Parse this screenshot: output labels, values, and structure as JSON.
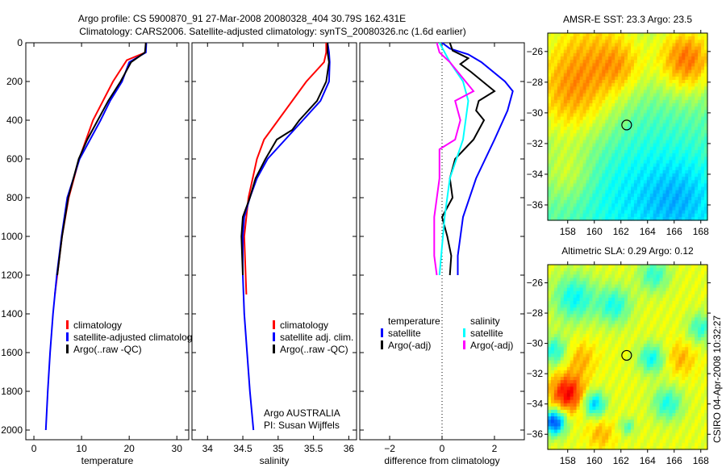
{
  "title": {
    "line1": "Argo profile: CS 5900870_91 27-Mar-2008 20080328_404 30.79S 162.431E",
    "line2": "Climatology: CARS2006. Satellite-adjusted climatology: synTS_20080326.nc (1.6d earlier)"
  },
  "credit": {
    "argo": "Argo AUSTRALIA",
    "pi": "PI: Susan Wijffels",
    "csiro": "CSIRO 04-Apr-2008 10:32:27"
  },
  "colors": {
    "red": "#ff0000",
    "blue": "#0000ff",
    "black": "#000000",
    "cyan": "#00ffff",
    "magenta": "#ff00ff"
  },
  "chart_data": [
    {
      "type": "line",
      "xlabel": "temperature",
      "ylabel": "",
      "xlim": [
        -1.7,
        32.5
      ],
      "ylim": [
        2050,
        0
      ],
      "xticks": [
        0,
        10,
        20,
        30
      ],
      "yticks": [
        0,
        200,
        400,
        600,
        800,
        1000,
        1200,
        1400,
        1600,
        1800,
        2000
      ],
      "legend": [
        "climatology",
        "satellite-adjusted climatology",
        "Argo(..raw -QC)"
      ],
      "series": [
        {
          "name": "climatology",
          "color": "red",
          "depth": [
            0,
            50,
            90,
            200,
            400,
            600,
            800,
            1000,
            1200,
            1300
          ],
          "values": [
            23.5,
            23.4,
            19.5,
            16.6,
            12.4,
            9.5,
            7.3,
            5.9,
            4.9,
            4.4
          ]
        },
        {
          "name": "satellite-adjusted climatology",
          "color": "blue",
          "depth": [
            0,
            50,
            100,
            200,
            300,
            400,
            600,
            800,
            1000,
            1200,
            1400,
            1600,
            1800,
            2000
          ],
          "values": [
            23.6,
            23.5,
            20,
            18.5,
            16,
            14,
            9.6,
            7,
            5.8,
            4.8,
            4,
            3.4,
            2.9,
            2.5
          ]
        },
        {
          "name": "Argo(..raw -QC)",
          "color": "black",
          "depth": [
            0,
            50,
            100,
            200,
            300,
            400,
            500,
            600,
            700,
            800,
            1000,
            1200
          ],
          "values": [
            23.5,
            23.3,
            20.4,
            18.2,
            15.6,
            13.4,
            11.2,
            9.4,
            8.3,
            7.2,
            5.9,
            4.9
          ]
        }
      ]
    },
    {
      "type": "line",
      "xlabel": "salinity",
      "xlim": [
        33.78,
        36.11
      ],
      "ylim": [
        2050,
        0
      ],
      "xticks": [
        34,
        34.5,
        35,
        35.5,
        36
      ],
      "legend": [
        "climatology",
        "satellite adj. clim.",
        "Argo(..raw -QC)"
      ],
      "series": [
        {
          "name": "climatology",
          "color": "red",
          "depth": [
            0,
            50,
            100,
            200,
            300,
            400,
            500,
            600,
            800,
            1000,
            1300
          ],
          "values": [
            35.68,
            35.68,
            35.65,
            35.4,
            35.2,
            35.0,
            34.8,
            34.7,
            34.58,
            34.52,
            34.55
          ]
        },
        {
          "name": "satellite adj. clim.",
          "color": "blue",
          "depth": [
            0,
            50,
            100,
            200,
            300,
            400,
            500,
            600,
            700,
            800,
            900,
            1000,
            1200,
            1400,
            1600,
            1800,
            2000
          ],
          "values": [
            35.7,
            35.72,
            35.73,
            35.72,
            35.6,
            35.35,
            35.1,
            34.85,
            34.7,
            34.6,
            34.52,
            34.5,
            34.5,
            34.52,
            34.56,
            34.6,
            34.65
          ]
        },
        {
          "name": "Argo(..raw -QC)",
          "color": "black",
          "depth": [
            0,
            50,
            100,
            200,
            300,
            400,
            450,
            500,
            600,
            700,
            800,
            900,
            1000,
            1200
          ],
          "values": [
            35.7,
            35.7,
            35.72,
            35.68,
            35.55,
            35.3,
            35.2,
            34.98,
            34.82,
            34.68,
            34.6,
            34.5,
            34.48,
            34.5
          ]
        }
      ]
    },
    {
      "type": "line",
      "xlabel": "difference from climatology",
      "xlim": [
        -3.14,
        3.14
      ],
      "ylim": [
        2050,
        0
      ],
      "xticks": [
        -2,
        0,
        2
      ],
      "legend": {
        "temperature": "temperature",
        "salinity": "salinity",
        "items": [
          "satellite",
          "Argo(-adj)",
          "satellite",
          "Argo(-adj)"
        ]
      },
      "series": [
        {
          "name": "temperature satellite",
          "color": "blue",
          "depth": [
            0,
            30,
            60,
            100,
            200,
            250,
            350,
            500,
            700,
            900,
            1100,
            1200
          ],
          "values": [
            0,
            0.3,
            1.0,
            1.5,
            2.4,
            2.7,
            2.5,
            2.0,
            1.3,
            0.8,
            0.6,
            0.6
          ]
        },
        {
          "name": "temperature Argo(-adj)",
          "color": "black",
          "depth": [
            0,
            40,
            80,
            110,
            150,
            250,
            300,
            350,
            400,
            500,
            600,
            700,
            800,
            900,
            1000,
            1100,
            1200
          ],
          "values": [
            0.3,
            0.4,
            1.0,
            0.7,
            1.1,
            2.0,
            1.4,
            1.3,
            1.6,
            1.2,
            0.5,
            0.3,
            0.4,
            0,
            0.2,
            0.35,
            0.3
          ]
        },
        {
          "name": "salinity satellite",
          "color": "cyan",
          "depth": [
            0,
            100,
            200,
            300,
            500,
            700,
            900,
            1200
          ],
          "values": [
            -0.1,
            0.3,
            0.8,
            1.0,
            0.8,
            0.3,
            0.1,
            -0.1
          ]
        },
        {
          "name": "salinity Argo(-adj)",
          "color": "magenta",
          "depth": [
            0,
            50,
            100,
            200,
            250,
            300,
            400,
            500,
            550,
            700,
            900,
            1100,
            1200
          ],
          "values": [
            -0.2,
            -0.1,
            0.3,
            0.9,
            1.2,
            0.5,
            0.7,
            0.5,
            -0.1,
            -0.1,
            -0.3,
            -0.3,
            -0.2
          ]
        }
      ]
    },
    {
      "type": "heatmap",
      "title": "AMSR-E SST: 23.3 Argo: 23.5",
      "xlim": [
        156.5,
        168.5
      ],
      "ylim": [
        -37,
        -24.8
      ],
      "xticks": [
        158,
        160,
        162,
        164,
        166,
        168
      ],
      "yticks": [
        -26,
        -28,
        -30,
        -32,
        -34,
        -36
      ],
      "marker": {
        "lon": 162.43,
        "lat": -30.79
      }
    },
    {
      "type": "heatmap",
      "title": "Altimetric SLA: 0.29 Argo: 0.12",
      "xlim": [
        156.5,
        168.5
      ],
      "ylim": [
        -37,
        -24.8
      ],
      "xticks": [
        158,
        160,
        162,
        164,
        166,
        168
      ],
      "yticks": [
        -26,
        -28,
        -30,
        -32,
        -34,
        -36
      ],
      "marker": {
        "lon": 162.43,
        "lat": -30.79
      }
    }
  ]
}
